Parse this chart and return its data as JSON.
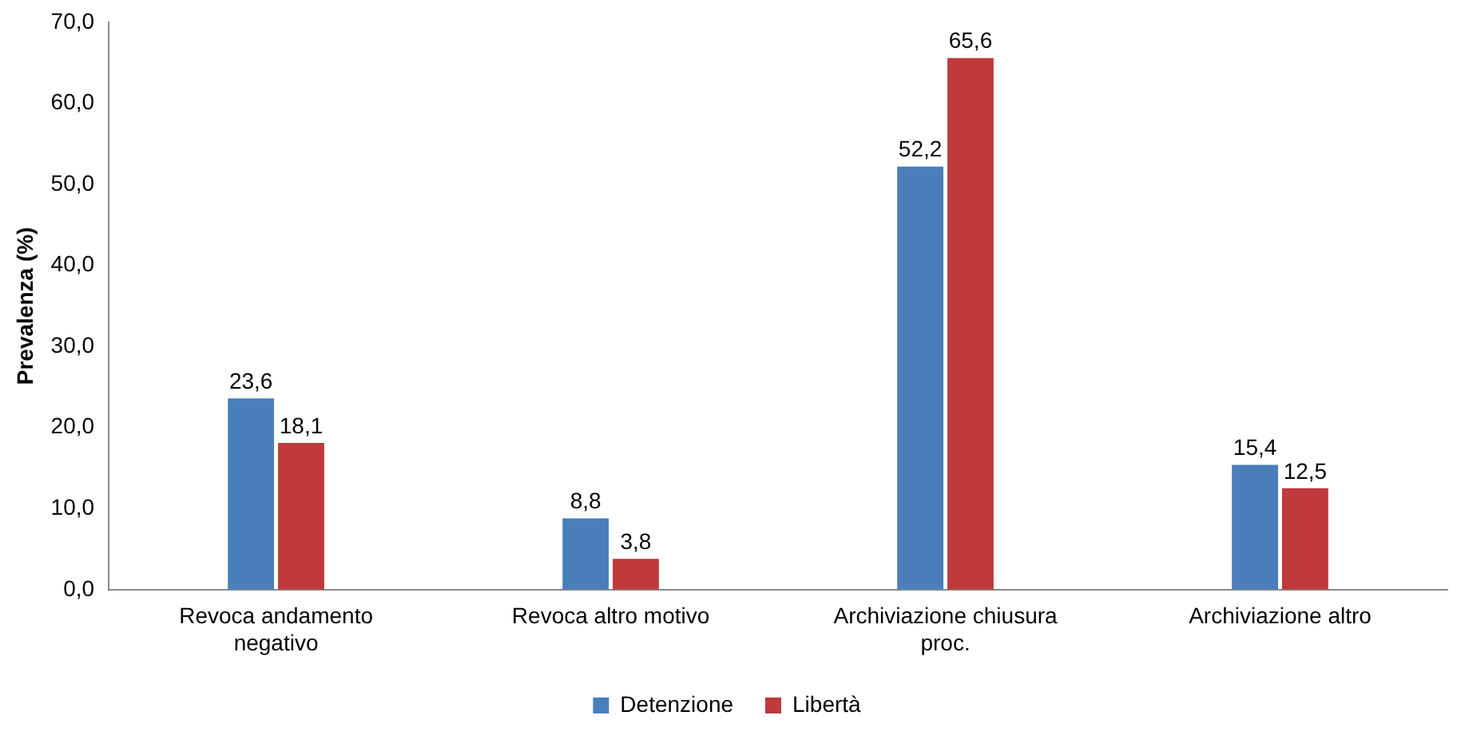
{
  "chart_data": {
    "type": "bar",
    "ylabel": "Prevalenza (%)",
    "categories": [
      "Revoca andamento negativo",
      "Revoca altro motivo",
      "Archiviazione chiusura proc.",
      "Archiviazione altro"
    ],
    "series": [
      {
        "name": "Detenzione",
        "color": "#4a7ebb",
        "values": [
          23.6,
          8.8,
          52.2,
          15.4
        ],
        "value_labels": [
          "23,6",
          "8,8",
          "52,2",
          "15,4"
        ]
      },
      {
        "name": "Libertà",
        "color": "#c0393b",
        "values": [
          18.1,
          3.8,
          65.6,
          12.5
        ],
        "value_labels": [
          "18,1",
          "3,8",
          "65,6",
          "12,5"
        ]
      }
    ],
    "ylim": [
      0,
      70
    ],
    "yticks": [
      {
        "value": 0,
        "label": "0,0"
      },
      {
        "value": 10,
        "label": "10,0"
      },
      {
        "value": 20,
        "label": "20,0"
      },
      {
        "value": 30,
        "label": "30,0"
      },
      {
        "value": 40,
        "label": "40,0"
      },
      {
        "value": 50,
        "label": "50,0"
      },
      {
        "value": 60,
        "label": "60,0"
      },
      {
        "value": 70,
        "label": "70,0"
      }
    ],
    "grid": false,
    "legend": "bottom"
  }
}
